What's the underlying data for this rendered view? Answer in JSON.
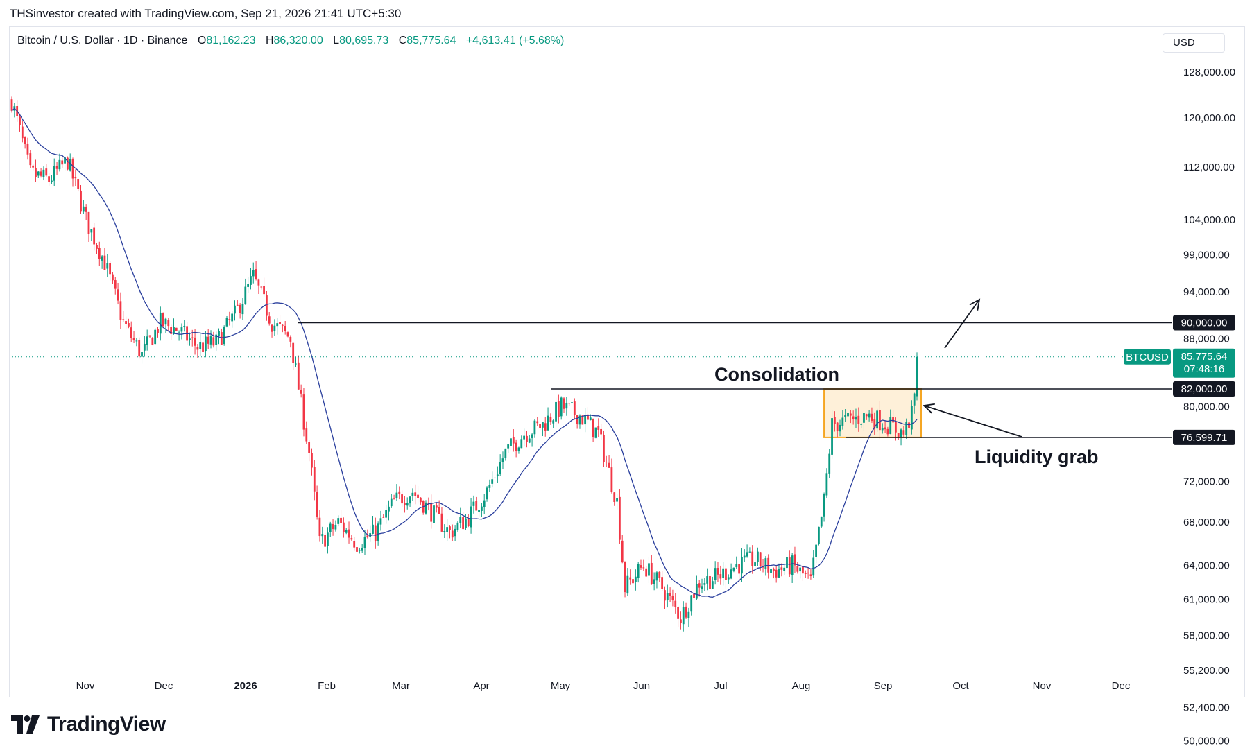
{
  "header": {
    "credit": "THSinvestor created with TradingView.com, Sep 21, 2026 21:41 UTC+5:30"
  },
  "legend": {
    "symbol": "Bitcoin / U.S. Dollar · 1D · Binance",
    "o_label": "O",
    "o_value": "81,162.23",
    "h_label": "H",
    "h_value": "86,320.00",
    "l_label": "L",
    "l_value": "80,695.73",
    "c_label": "C",
    "c_value": "85,775.64",
    "change": "+4,613.41 (+5.68%)"
  },
  "currency": "USD",
  "brand": {
    "name": "TradingView"
  },
  "colors": {
    "up": "#089981",
    "down": "#f23645",
    "ma": "#2a3f9d",
    "box_border": "#f5a623",
    "box_fill": "#fde9c9",
    "tag_bg": "#131722",
    "price_tag_bg": "#089981"
  },
  "chart_data": {
    "type": "candlestick",
    "symbol": "BTCUSD",
    "interval": "1D",
    "scale": "log",
    "x_ticks": [
      "Nov",
      "Dec",
      "2026",
      "Feb",
      "Mar",
      "Apr",
      "May",
      "Jun",
      "Jul",
      "Aug",
      "Sep",
      "Oct",
      "Nov",
      "Dec"
    ],
    "y_ticks": [
      "128,000.00",
      "120,000.00",
      "112,000.00",
      "104,000.00",
      "99,000.00",
      "94,000.00",
      "88,000.00",
      "80,000.00",
      "72,000.00",
      "68,000.00",
      "64,000.00",
      "61,000.00",
      "58,000.00",
      "55,200.00",
      "52,400.00",
      "50,000.00"
    ],
    "y_tick_values": [
      128000,
      120000,
      112000,
      104000,
      99000,
      94000,
      88000,
      80000,
      72000,
      68000,
      64000,
      61000,
      58000,
      55200,
      52400,
      50000
    ],
    "price_path": [
      [
        "2025-10-15",
        123000
      ],
      [
        "2025-10-22",
        111000
      ],
      [
        "2025-10-29",
        110000
      ],
      [
        "2025-11-05",
        113000
      ],
      [
        "2025-11-12",
        104000
      ],
      [
        "2025-11-19",
        98000
      ],
      [
        "2025-11-26",
        90000
      ],
      [
        "2025-12-03",
        86000
      ],
      [
        "2025-12-10",
        90000
      ],
      [
        "2025-12-17",
        89000
      ],
      [
        "2025-12-24",
        87000
      ],
      [
        "2025-12-31",
        87500
      ],
      [
        "2026-01-07",
        91000
      ],
      [
        "2026-01-14",
        96000
      ],
      [
        "2026-01-21",
        90000
      ],
      [
        "2026-01-28",
        88000
      ],
      [
        "2026-02-04",
        75000
      ],
      [
        "2026-02-08",
        66000
      ],
      [
        "2026-02-15",
        68000
      ],
      [
        "2026-02-22",
        66000
      ],
      [
        "2026-03-01",
        67000
      ],
      [
        "2026-03-08",
        70000
      ],
      [
        "2026-03-15",
        71000
      ],
      [
        "2026-03-22",
        69000
      ],
      [
        "2026-03-29",
        67000
      ],
      [
        "2026-04-05",
        68500
      ],
      [
        "2026-04-12",
        71000
      ],
      [
        "2026-04-19",
        75000
      ],
      [
        "2026-04-26",
        77000
      ],
      [
        "2026-05-03",
        78000
      ],
      [
        "2026-05-10",
        80000
      ],
      [
        "2026-05-17",
        79000
      ],
      [
        "2026-05-24",
        77000
      ],
      [
        "2026-05-31",
        70000
      ],
      [
        "2026-06-03",
        62000
      ],
      [
        "2026-06-10",
        64000
      ],
      [
        "2026-06-17",
        62000
      ],
      [
        "2026-06-24",
        59500
      ],
      [
        "2026-07-01",
        62500
      ],
      [
        "2026-07-08",
        63000
      ],
      [
        "2026-07-15",
        64000
      ],
      [
        "2026-07-22",
        64500
      ],
      [
        "2026-07-29",
        63500
      ],
      [
        "2026-08-05",
        64000
      ],
      [
        "2026-08-12",
        62500
      ],
      [
        "2026-08-17",
        70000
      ],
      [
        "2026-08-20",
        78000
      ],
      [
        "2026-08-27",
        78500
      ],
      [
        "2026-09-03",
        79000
      ],
      [
        "2026-09-10",
        78000
      ],
      [
        "2026-09-16",
        77000
      ],
      [
        "2026-09-19",
        79000
      ],
      [
        "2026-09-20",
        81162
      ],
      [
        "2026-09-21",
        85775
      ]
    ],
    "moving_average": "single blue line following price",
    "levels": [
      {
        "label": "90,000.00",
        "value": 90000
      },
      {
        "label": "82,000.00",
        "value": 82000
      },
      {
        "label": "76,599.71",
        "value": 76599.71
      }
    ],
    "last_price": {
      "symbol": "BTCUSD",
      "value": "85,775.64",
      "countdown": "07:48:16"
    },
    "annotations": {
      "box": "Consolidation",
      "grab": "Liquidity grab"
    }
  }
}
